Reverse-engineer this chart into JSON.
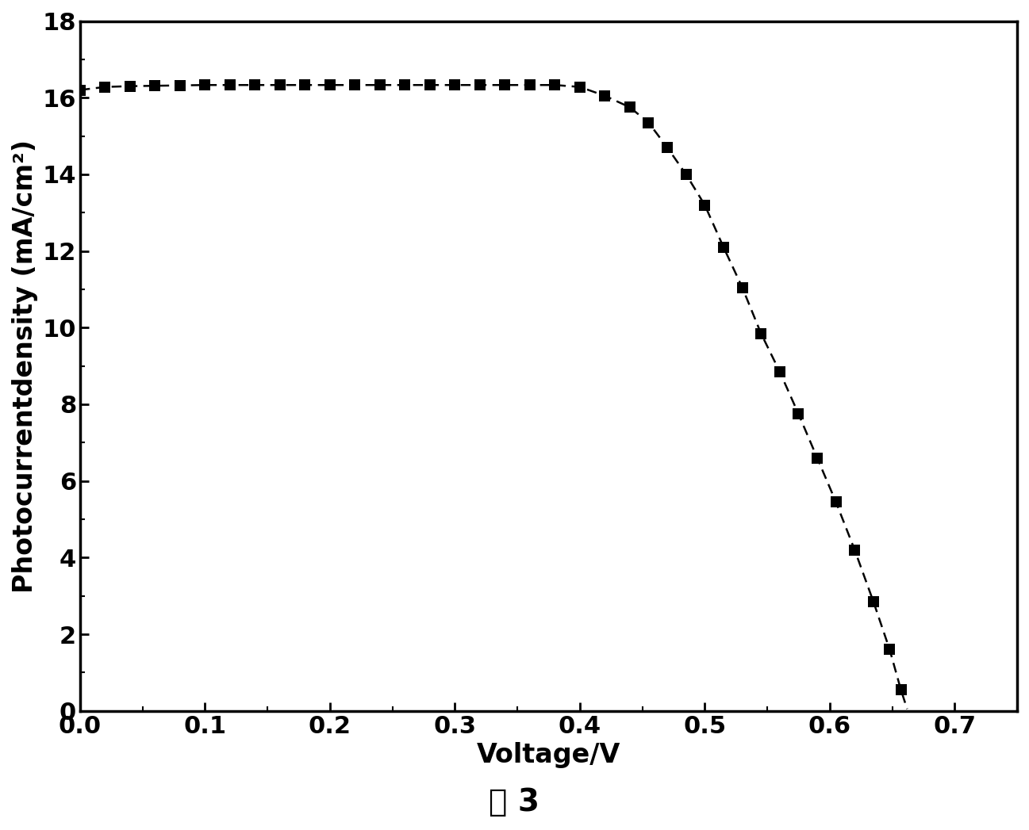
{
  "x_data": [
    0.0,
    0.02,
    0.04,
    0.06,
    0.08,
    0.1,
    0.12,
    0.14,
    0.16,
    0.18,
    0.2,
    0.22,
    0.24,
    0.26,
    0.28,
    0.3,
    0.32,
    0.34,
    0.36,
    0.38,
    0.4,
    0.42,
    0.44,
    0.455,
    0.47,
    0.485,
    0.5,
    0.515,
    0.53,
    0.545,
    0.56,
    0.575,
    0.59,
    0.605,
    0.62,
    0.635,
    0.648,
    0.657,
    0.662
  ],
  "y_data": [
    16.2,
    16.28,
    16.3,
    16.31,
    16.32,
    16.33,
    16.33,
    16.33,
    16.33,
    16.33,
    16.33,
    16.33,
    16.33,
    16.33,
    16.33,
    16.33,
    16.33,
    16.33,
    16.33,
    16.33,
    16.28,
    16.05,
    15.75,
    15.35,
    14.7,
    14.0,
    13.2,
    12.1,
    11.05,
    9.85,
    8.85,
    7.75,
    6.6,
    5.45,
    4.2,
    2.85,
    1.6,
    0.55,
    0.05
  ],
  "marker_x": [
    0.0,
    0.02,
    0.04,
    0.06,
    0.08,
    0.1,
    0.12,
    0.14,
    0.16,
    0.18,
    0.2,
    0.22,
    0.24,
    0.26,
    0.28,
    0.3,
    0.32,
    0.34,
    0.36,
    0.38,
    0.4,
    0.42,
    0.44,
    0.455,
    0.47,
    0.485,
    0.5,
    0.515,
    0.53,
    0.545,
    0.56,
    0.575,
    0.59,
    0.605,
    0.62,
    0.635,
    0.648,
    0.657
  ],
  "marker_y": [
    16.2,
    16.28,
    16.3,
    16.31,
    16.32,
    16.33,
    16.33,
    16.33,
    16.33,
    16.33,
    16.33,
    16.33,
    16.33,
    16.33,
    16.33,
    16.33,
    16.33,
    16.33,
    16.33,
    16.33,
    16.28,
    16.05,
    15.75,
    15.35,
    14.7,
    14.0,
    13.2,
    12.1,
    11.05,
    9.85,
    8.85,
    7.75,
    6.6,
    5.45,
    4.2,
    2.85,
    1.6,
    0.55
  ],
  "line_color": "#000000",
  "marker_color": "#000000",
  "xlabel": "Voltage/V",
  "ylabel": "Photocurrentdensity (mA/cm²)",
  "caption": "图 3",
  "xlim": [
    0.0,
    0.75
  ],
  "ylim": [
    0.0,
    18.0
  ],
  "xticks": [
    0.0,
    0.1,
    0.2,
    0.3,
    0.4,
    0.5,
    0.6,
    0.7
  ],
  "yticks": [
    0,
    2,
    4,
    6,
    8,
    10,
    12,
    14,
    16,
    18
  ],
  "xlabel_fontsize": 24,
  "ylabel_fontsize": 24,
  "tick_fontsize": 22,
  "caption_fontsize": 28,
  "marker_size": 10,
  "line_width": 1.8,
  "background_color": "#ffffff",
  "figure_width": 12.97,
  "figure_height": 10.47
}
